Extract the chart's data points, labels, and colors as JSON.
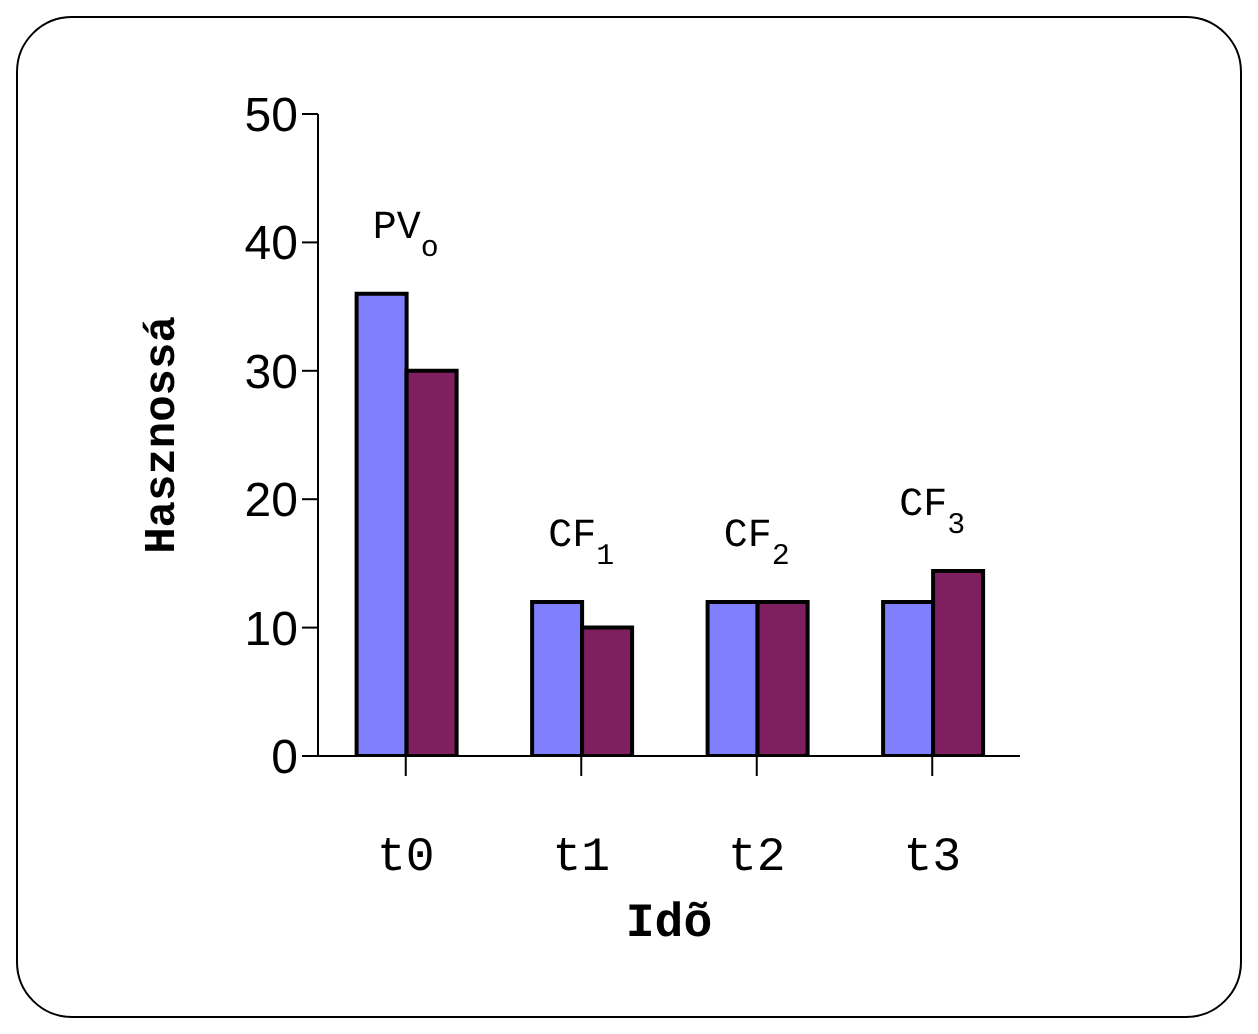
{
  "chart_data": {
    "type": "bar",
    "xlabel": "Idõ",
    "ylabel": "Hasznossá",
    "categories": [
      "t0",
      "t1",
      "t2",
      "t3"
    ],
    "series": [
      {
        "color": "#8080ff",
        "values": [
          36,
          12,
          12,
          12
        ]
      },
      {
        "color": "#7f1f5f",
        "values": [
          30,
          10,
          12,
          14.4
        ]
      }
    ],
    "ylim": [
      0,
      50
    ],
    "yticks": [
      0,
      10,
      20,
      30,
      40,
      50
    ],
    "grid": false,
    "legend": false,
    "annotations": [
      "PV$_{o}$",
      "CF$_{1}$",
      "CF$_{2}$",
      "CF$_{3}$"
    ]
  }
}
